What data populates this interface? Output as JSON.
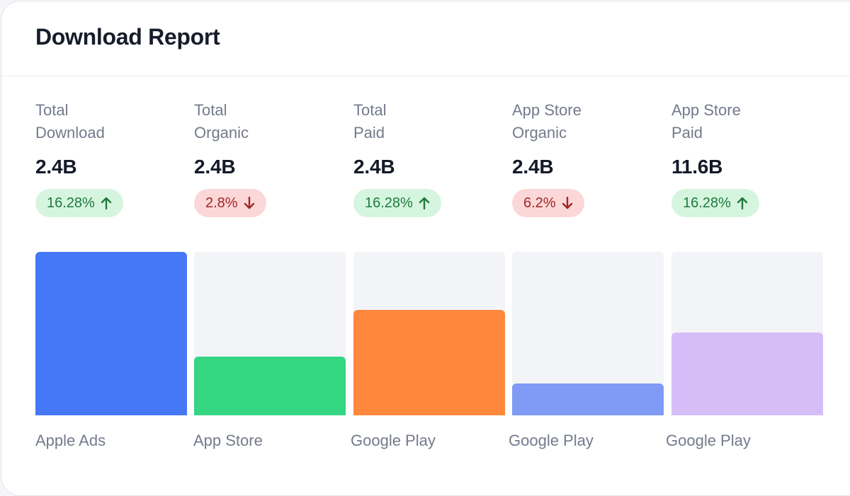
{
  "card": {
    "title": "Download Report"
  },
  "stats": [
    {
      "label": "Total\nDownload",
      "value": "2.4B",
      "change": "16.28%",
      "direction": "up"
    },
    {
      "label": "Total\nOrganic",
      "value": "2.4B",
      "change": "2.8%",
      "direction": "down"
    },
    {
      "label": "Total\nPaid",
      "value": "2.4B",
      "change": "16.28%",
      "direction": "up"
    },
    {
      "label": "App Store\nOrganic",
      "value": "2.4B",
      "change": "6.2%",
      "direction": "down"
    },
    {
      "label": "App Store\nPaid",
      "value": "11.6B",
      "change": "16.28%",
      "direction": "up"
    }
  ],
  "chart_data": {
    "type": "bar",
    "categories": [
      "Apple Ads",
      "App Store",
      "Google Play",
      "Google Play",
      "Google Play"
    ],
    "values": [
      1.0,
      0.36,
      0.645,
      0.195,
      0.505
    ],
    "ylim": [
      0,
      1
    ],
    "colors": [
      "#4478f7",
      "#34d682",
      "#ff883c",
      "#7f9bf5",
      "#d6bdf8"
    ]
  },
  "colors": {
    "up_bg": "#d6f5df",
    "up_text": "#1f7a3c",
    "down_bg": "#fbd7d7",
    "down_text": "#a32626",
    "track": "#f3f4f7"
  },
  "icons": {
    "up": "arrow-up-icon",
    "down": "arrow-down-icon"
  }
}
